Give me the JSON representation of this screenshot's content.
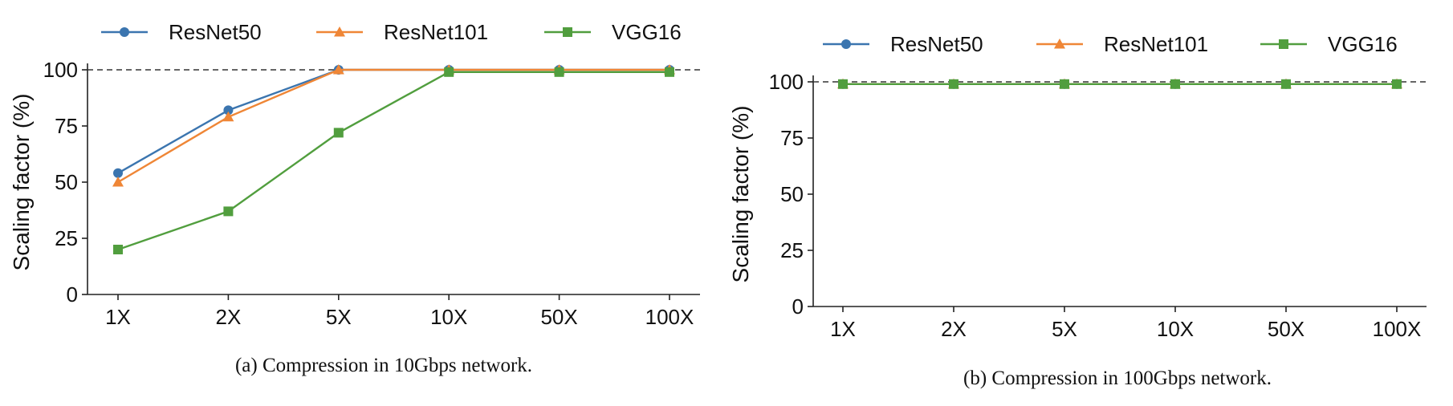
{
  "chart_data": [
    {
      "type": "line",
      "caption": "(a)  Compression in 10Gbps network.",
      "xlabel": "",
      "ylabel": "Scaling factor (%)",
      "categories": [
        "1X",
        "2X",
        "5X",
        "10X",
        "50X",
        "100X"
      ],
      "yticks": [
        0,
        25,
        50,
        75,
        100
      ],
      "ylim": [
        0,
        100
      ],
      "reference_line": 100,
      "grid": false,
      "legend_position": "top",
      "series": [
        {
          "name": "ResNet50",
          "color": "#3b75af",
          "marker": "circle",
          "values": [
            54,
            82,
            100,
            100,
            100,
            100
          ]
        },
        {
          "name": "ResNet101",
          "color": "#ef8636",
          "marker": "triangle",
          "values": [
            50,
            79,
            100,
            100,
            100,
            100
          ]
        },
        {
          "name": "VGG16",
          "color": "#519e3e",
          "marker": "square",
          "values": [
            20,
            37,
            72,
            99,
            99,
            99
          ]
        }
      ]
    },
    {
      "type": "line",
      "caption": "(b)  Compression in 100Gbps network.",
      "xlabel": "",
      "ylabel": "Scaling factor (%)",
      "categories": [
        "1X",
        "2X",
        "5X",
        "10X",
        "50X",
        "100X"
      ],
      "yticks": [
        0,
        25,
        50,
        75,
        100
      ],
      "ylim": [
        0,
        100
      ],
      "reference_line": 100,
      "grid": false,
      "legend_position": "top",
      "series": [
        {
          "name": "ResNet50",
          "color": "#3b75af",
          "marker": "circle",
          "values": [
            99,
            99,
            99,
            99,
            99,
            99
          ]
        },
        {
          "name": "ResNet101",
          "color": "#ef8636",
          "marker": "triangle",
          "values": [
            99,
            99,
            99,
            99,
            99,
            99
          ]
        },
        {
          "name": "VGG16",
          "color": "#519e3e",
          "marker": "square",
          "values": [
            99,
            99,
            99,
            99,
            99,
            99
          ]
        }
      ]
    }
  ]
}
